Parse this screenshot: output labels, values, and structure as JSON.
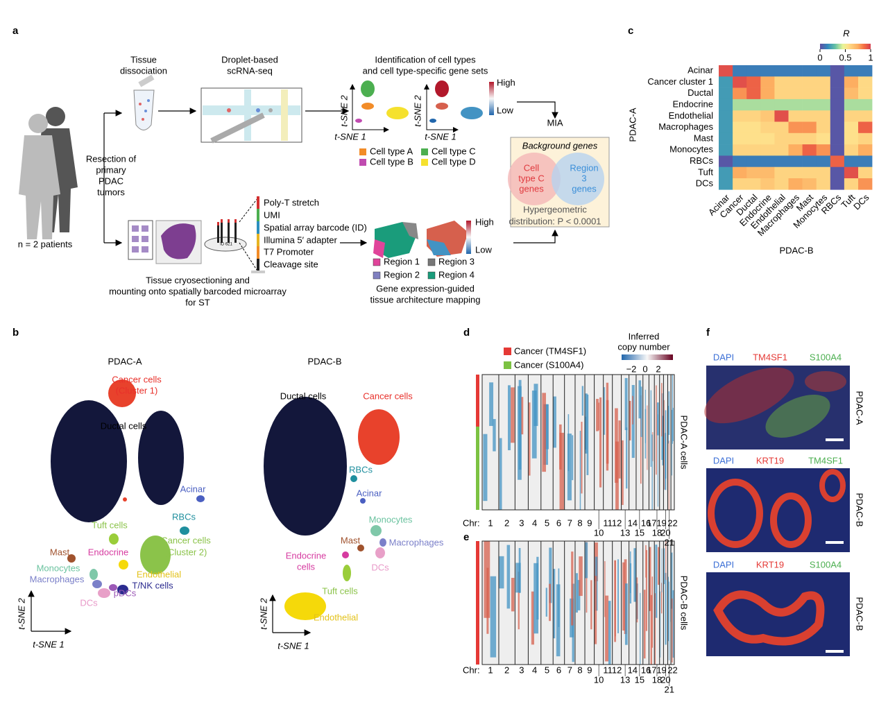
{
  "panel_labels": [
    "a",
    "b",
    "c",
    "d",
    "e",
    "f"
  ],
  "panel_a": {
    "dissociation": [
      "Tissue",
      "dissociation"
    ],
    "scrnaseq": [
      "Droplet-based",
      "scRNA-seq"
    ],
    "identification": [
      "Identification of cell types",
      "and cell type-specific gene sets"
    ],
    "sc_axes": [
      {
        "y": "t-SNE 2",
        "x": "t-SNE 1"
      },
      {
        "y": "t-SNE 2",
        "x": "t-SNE 1"
      }
    ],
    "sc_high": "High",
    "sc_low": "Low",
    "cell_types": [
      "Cell type A",
      "Cell type B",
      "Cell type C",
      "Cell type D"
    ],
    "resection": [
      "Resection of",
      "primary",
      "PDAC",
      "tumors"
    ],
    "patients": "n = 2 patients",
    "barcode_parts": [
      "Poly-T stretch",
      "UMI",
      "Spatial array barcode (ID)",
      "Illumina 5′ adapter",
      "T7 Promoter",
      "Cleavage site"
    ],
    "array_id": "ID 621",
    "st_high": "High",
    "st_low": "Low",
    "regions": [
      "Region 1",
      "Region 2",
      "Region 3",
      "Region 4"
    ],
    "mapping": [
      "Gene expression-guided",
      "tissue architecture mapping"
    ],
    "cryosection": [
      "Tissue cryosectioning and",
      "mounting onto spatially barcoded microarray",
      "for ST"
    ],
    "mia": {
      "title": "MIA",
      "background": "Background genes",
      "left": [
        "Cell",
        "type C",
        "genes"
      ],
      "right": [
        "Region",
        "3",
        "genes"
      ],
      "test": [
        "Hypergeometric",
        "distribution: P < 0.0001"
      ]
    }
  },
  "panel_b": {
    "plots": [
      {
        "title": "PDAC-A",
        "axes": {
          "y": "t-SNE 2",
          "x": "t-SNE 1"
        },
        "labels": [
          "Cancer cells",
          "(Cluster 1)",
          "Ductal cells",
          "Acinar",
          "RBCs",
          "Tuft cells",
          "Cancer cells",
          "(Cluster 2)",
          "Mast",
          "Endocrine",
          "Monocytes",
          "Macrophages",
          "Endothelial",
          "T/NK cells",
          "pDCs",
          "DCs"
        ]
      },
      {
        "title": "PDAC-B",
        "axes": {
          "y": "t-SNE 2",
          "x": "t-SNE 1"
        },
        "labels": [
          "Ductal cells",
          "Cancer cells",
          "RBCs",
          "Acinar",
          "Monocytes",
          "Macrophages",
          "Mast",
          "Endocrine",
          "cells",
          "DCs",
          "Tuft cells",
          "Endothelial"
        ]
      }
    ]
  },
  "panel_c": {
    "legend_title": "R",
    "colorbar_lim": [
      0,
      1
    ],
    "colorbar_ticks": [
      0,
      0.5,
      1
    ],
    "rows": [
      "Acinar",
      "Cancer cluster 1",
      "Ductal",
      "Endocrine",
      "Endothelial",
      "Macrophages",
      "Mast",
      "Monocytes",
      "RBCs",
      "Tuft",
      "DCs"
    ],
    "columns": [
      "Acinar",
      "Cancer",
      "Ductal",
      "Endocrine",
      "Endothelial",
      "Macrophages",
      "Mast",
      "Monocytes",
      "RBCs",
      "Tuft",
      "DCs"
    ],
    "row_axis": "PDAC-A",
    "column_axis": "PDAC-B",
    "values": [
      [
        0.95,
        0.12,
        0.12,
        0.12,
        0.12,
        0.12,
        0.12,
        0.12,
        0.02,
        0.12,
        0.12
      ],
      [
        0.2,
        0.95,
        0.9,
        0.75,
        0.6,
        0.6,
        0.6,
        0.6,
        0.02,
        0.75,
        0.58
      ],
      [
        0.2,
        0.8,
        0.9,
        0.75,
        0.6,
        0.6,
        0.6,
        0.6,
        0.02,
        0.7,
        0.58
      ],
      [
        0.2,
        0.38,
        0.38,
        0.38,
        0.38,
        0.38,
        0.38,
        0.38,
        0.02,
        0.38,
        0.38
      ],
      [
        0.2,
        0.6,
        0.6,
        0.65,
        0.95,
        0.6,
        0.6,
        0.6,
        0.02,
        0.6,
        0.6
      ],
      [
        0.2,
        0.55,
        0.55,
        0.6,
        0.6,
        0.8,
        0.8,
        0.6,
        0.02,
        0.55,
        0.9
      ],
      [
        0.2,
        0.55,
        0.55,
        0.55,
        0.6,
        0.6,
        0.6,
        0.55,
        0.02,
        0.55,
        0.6
      ],
      [
        0.2,
        0.6,
        0.6,
        0.6,
        0.6,
        0.75,
        0.9,
        0.8,
        0.02,
        0.6,
        0.75
      ],
      [
        0.02,
        0.12,
        0.12,
        0.12,
        0.12,
        0.12,
        0.12,
        0.12,
        0.9,
        0.12,
        0.12
      ],
      [
        0.2,
        0.75,
        0.7,
        0.7,
        0.6,
        0.6,
        0.6,
        0.6,
        0.02,
        0.95,
        0.6
      ],
      [
        0.2,
        0.6,
        0.6,
        0.65,
        0.6,
        0.75,
        0.7,
        0.6,
        0.02,
        0.6,
        0.8
      ]
    ]
  },
  "panel_d": {
    "legend": [
      "Cancer (TM4SF1)",
      "Cancer (S100A4)"
    ],
    "cnv_title": [
      "Inferred",
      "copy number"
    ],
    "cnv_ticks": [
      "−2",
      "0",
      "2"
    ],
    "side_label": "PDAC-A cells",
    "chr_label": "Chr:",
    "chromosomes": [
      "1",
      "2",
      "3",
      "4",
      "5",
      "6",
      "7",
      "8",
      "9",
      "10",
      "11",
      "12",
      "13",
      "14",
      "15",
      "16",
      "17",
      "18",
      "19",
      "20",
      "21",
      "22"
    ]
  },
  "panel_e": {
    "side_label": "PDAC-B cells",
    "chr_label": "Chr:",
    "chromosomes": [
      "1",
      "2",
      "3",
      "4",
      "5",
      "6",
      "7",
      "8",
      "9",
      "10",
      "11",
      "12",
      "13",
      "14",
      "15",
      "16",
      "17",
      "18",
      "19",
      "20",
      "21",
      "22"
    ]
  },
  "panel_f": {
    "rows": [
      {
        "stains": [
          "DAPI",
          "TM4SF1",
          "S100A4"
        ],
        "sample": "PDAC-A"
      },
      {
        "stains": [
          "DAPI",
          "KRT19",
          "TM4SF1"
        ],
        "sample": "PDAC-B"
      },
      {
        "stains": [
          "DAPI",
          "KRT19",
          "S100A4"
        ],
        "sample": "PDAC-B"
      }
    ]
  }
}
